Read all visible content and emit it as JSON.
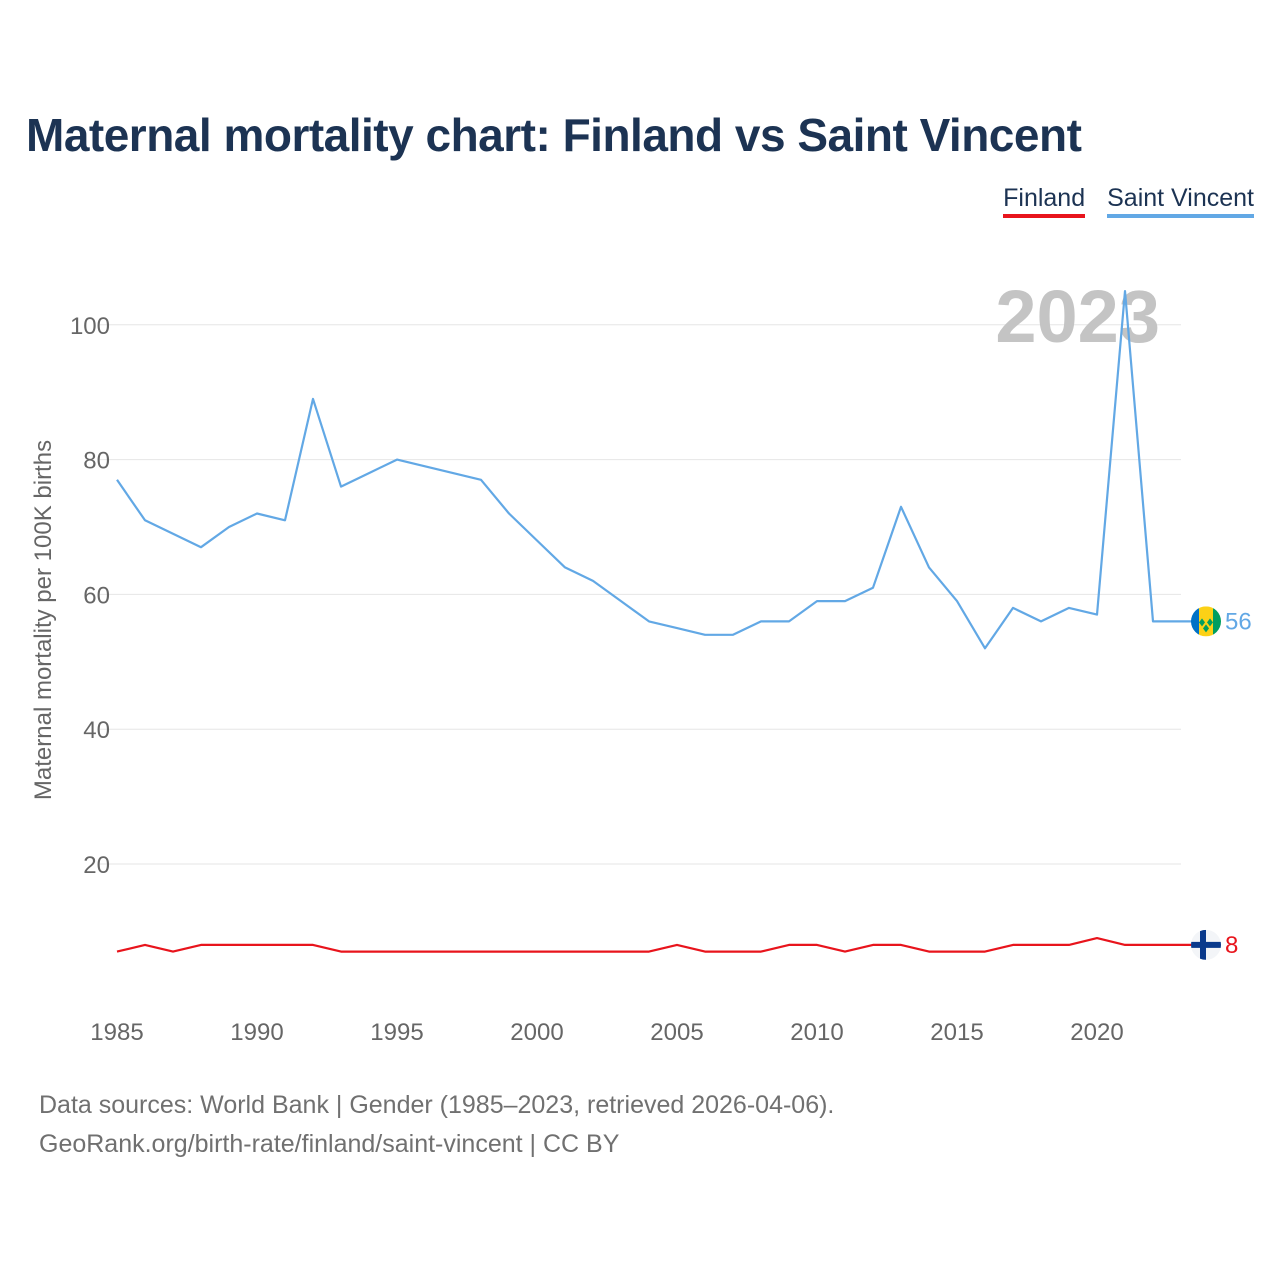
{
  "title": "Maternal mortality chart: Finland vs Saint Vincent",
  "legend": {
    "finland": "Finland",
    "saint_vincent": "Saint Vincent"
  },
  "year_label": "2023",
  "footer": {
    "line1": "Data sources: World Bank | Gender (1985–2023, retrieved 2026-04-06).",
    "line2": "GeoRank.org/birth-rate/finland/saint-vincent | CC BY"
  },
  "colors": {
    "finland": "#e8141c",
    "saint_vincent": "#62a8e5",
    "grid": "#e6e6e6",
    "axis_text": "#666666"
  },
  "chart_data": {
    "type": "line",
    "title": "Maternal mortality chart: Finland vs Saint Vincent",
    "xlabel": "",
    "ylabel": "Maternal mortality per 100K births",
    "xlim": [
      1985,
      2023
    ],
    "ylim": [
      0,
      110
    ],
    "x_ticks": [
      1985,
      1990,
      1995,
      2000,
      2005,
      2010,
      2015,
      2020
    ],
    "y_ticks": [
      20,
      40,
      60,
      80,
      100
    ],
    "grid": true,
    "legend_position": "top-right",
    "x": [
      1985,
      1986,
      1987,
      1988,
      1989,
      1990,
      1991,
      1992,
      1993,
      1994,
      1995,
      1996,
      1997,
      1998,
      1999,
      2000,
      2001,
      2002,
      2003,
      2004,
      2005,
      2006,
      2007,
      2008,
      2009,
      2010,
      2011,
      2012,
      2013,
      2014,
      2015,
      2016,
      2017,
      2018,
      2019,
      2020,
      2021,
      2022,
      2023
    ],
    "series": [
      {
        "name": "Saint Vincent",
        "color": "#62a8e5",
        "end_label": "56",
        "flag": "saint-vincent-flag-icon",
        "values": [
          77,
          71,
          69,
          67,
          70,
          72,
          71,
          89,
          76,
          78,
          80,
          79,
          78,
          77,
          72,
          68,
          64,
          62,
          59,
          56,
          55,
          54,
          54,
          56,
          56,
          59,
          59,
          61,
          73,
          64,
          59,
          52,
          58,
          56,
          58,
          57,
          105,
          56,
          56
        ]
      },
      {
        "name": "Finland",
        "color": "#e8141c",
        "end_label": "8",
        "flag": "finland-flag-icon",
        "values": [
          7,
          8,
          7,
          8,
          8,
          8,
          8,
          8,
          7,
          7,
          7,
          7,
          7,
          7,
          7,
          7,
          7,
          7,
          7,
          7,
          8,
          7,
          7,
          7,
          8,
          8,
          7,
          8,
          8,
          7,
          7,
          7,
          8,
          8,
          8,
          9,
          8,
          8,
          8
        ]
      }
    ]
  }
}
